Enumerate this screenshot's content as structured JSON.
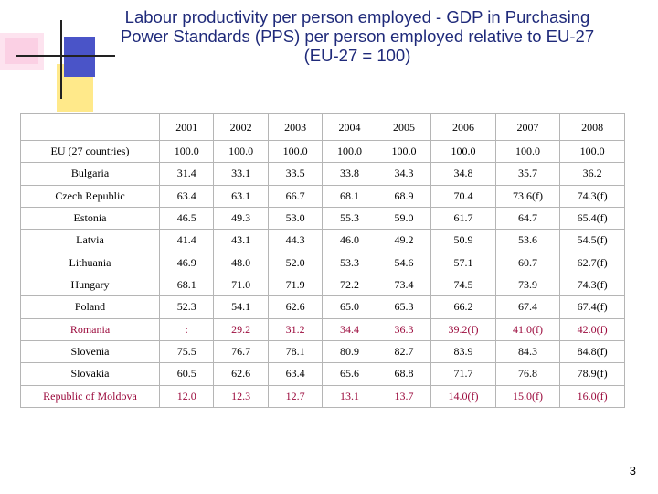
{
  "title": {
    "line1": "Labour productivity per person employed - GDP in Purchasing",
    "line2": "Power Standards (PPS) per person employed relative to EU-27",
    "line3": "(EU-27 = 100)"
  },
  "table": {
    "header": [
      "",
      "2001",
      "2002",
      "2003",
      "2004",
      "2005",
      "2006",
      "2007",
      "2008"
    ],
    "rows": [
      {
        "country": "EU (27 countries)",
        "values": [
          "100.0",
          "100.0",
          "100.0",
          "100.0",
          "100.0",
          "100.0",
          "100.0",
          "100.0"
        ]
      },
      {
        "country": "Bulgaria",
        "values": [
          "31.4",
          "33.1",
          "33.5",
          "33.8",
          "34.3",
          "34.8",
          "35.7",
          "36.2"
        ]
      },
      {
        "country": "Czech Republic",
        "values": [
          "63.4",
          "63.1",
          "66.7",
          "68.1",
          "68.9",
          "70.4",
          "73.6(f)",
          "74.3(f)"
        ]
      },
      {
        "country": "Estonia",
        "values": [
          "46.5",
          "49.3",
          "53.0",
          "55.3",
          "59.0",
          "61.7",
          "64.7",
          "65.4(f)"
        ]
      },
      {
        "country": "Latvia",
        "values": [
          "41.4",
          "43.1",
          "44.3",
          "46.0",
          "49.2",
          "50.9",
          "53.6",
          "54.5(f)"
        ]
      },
      {
        "country": "Lithuania",
        "values": [
          "46.9",
          "48.0",
          "52.0",
          "53.3",
          "54.6",
          "57.1",
          "60.7",
          "62.7(f)"
        ]
      },
      {
        "country": "Hungary",
        "values": [
          "68.1",
          "71.0",
          "71.9",
          "72.2",
          "73.4",
          "74.5",
          "73.9",
          "74.3(f)"
        ]
      },
      {
        "country": "Poland",
        "values": [
          "52.3",
          "54.1",
          "62.6",
          "65.0",
          "65.3",
          "66.2",
          "67.4",
          "67.4(f)"
        ]
      },
      {
        "country": "Romania",
        "values": [
          ":",
          "29.2",
          "31.2",
          "34.4",
          "36.3",
          "39.2(f)",
          "41.0(f)",
          "42.0(f)"
        ]
      },
      {
        "country": "Slovenia",
        "values": [
          "75.5",
          "76.7",
          "78.1",
          "80.9",
          "82.7",
          "83.9",
          "84.3",
          "84.8(f)"
        ]
      },
      {
        "country": "Slovakia",
        "values": [
          "60.5",
          "62.6",
          "63.4",
          "65.6",
          "68.8",
          "71.7",
          "76.8",
          "78.9(f)"
        ]
      },
      {
        "country": "Republic of Moldova",
        "values": [
          "12.0",
          "12.3",
          "12.7",
          "13.1",
          "13.7",
          "14.0(f)",
          "15.0(f)",
          "16.0(f)"
        ]
      }
    ]
  },
  "page_number": "3",
  "colors": {
    "title": "#1f2a7a",
    "highlight_rows": "#9b0a3c",
    "grid": "#b5b5b5"
  }
}
